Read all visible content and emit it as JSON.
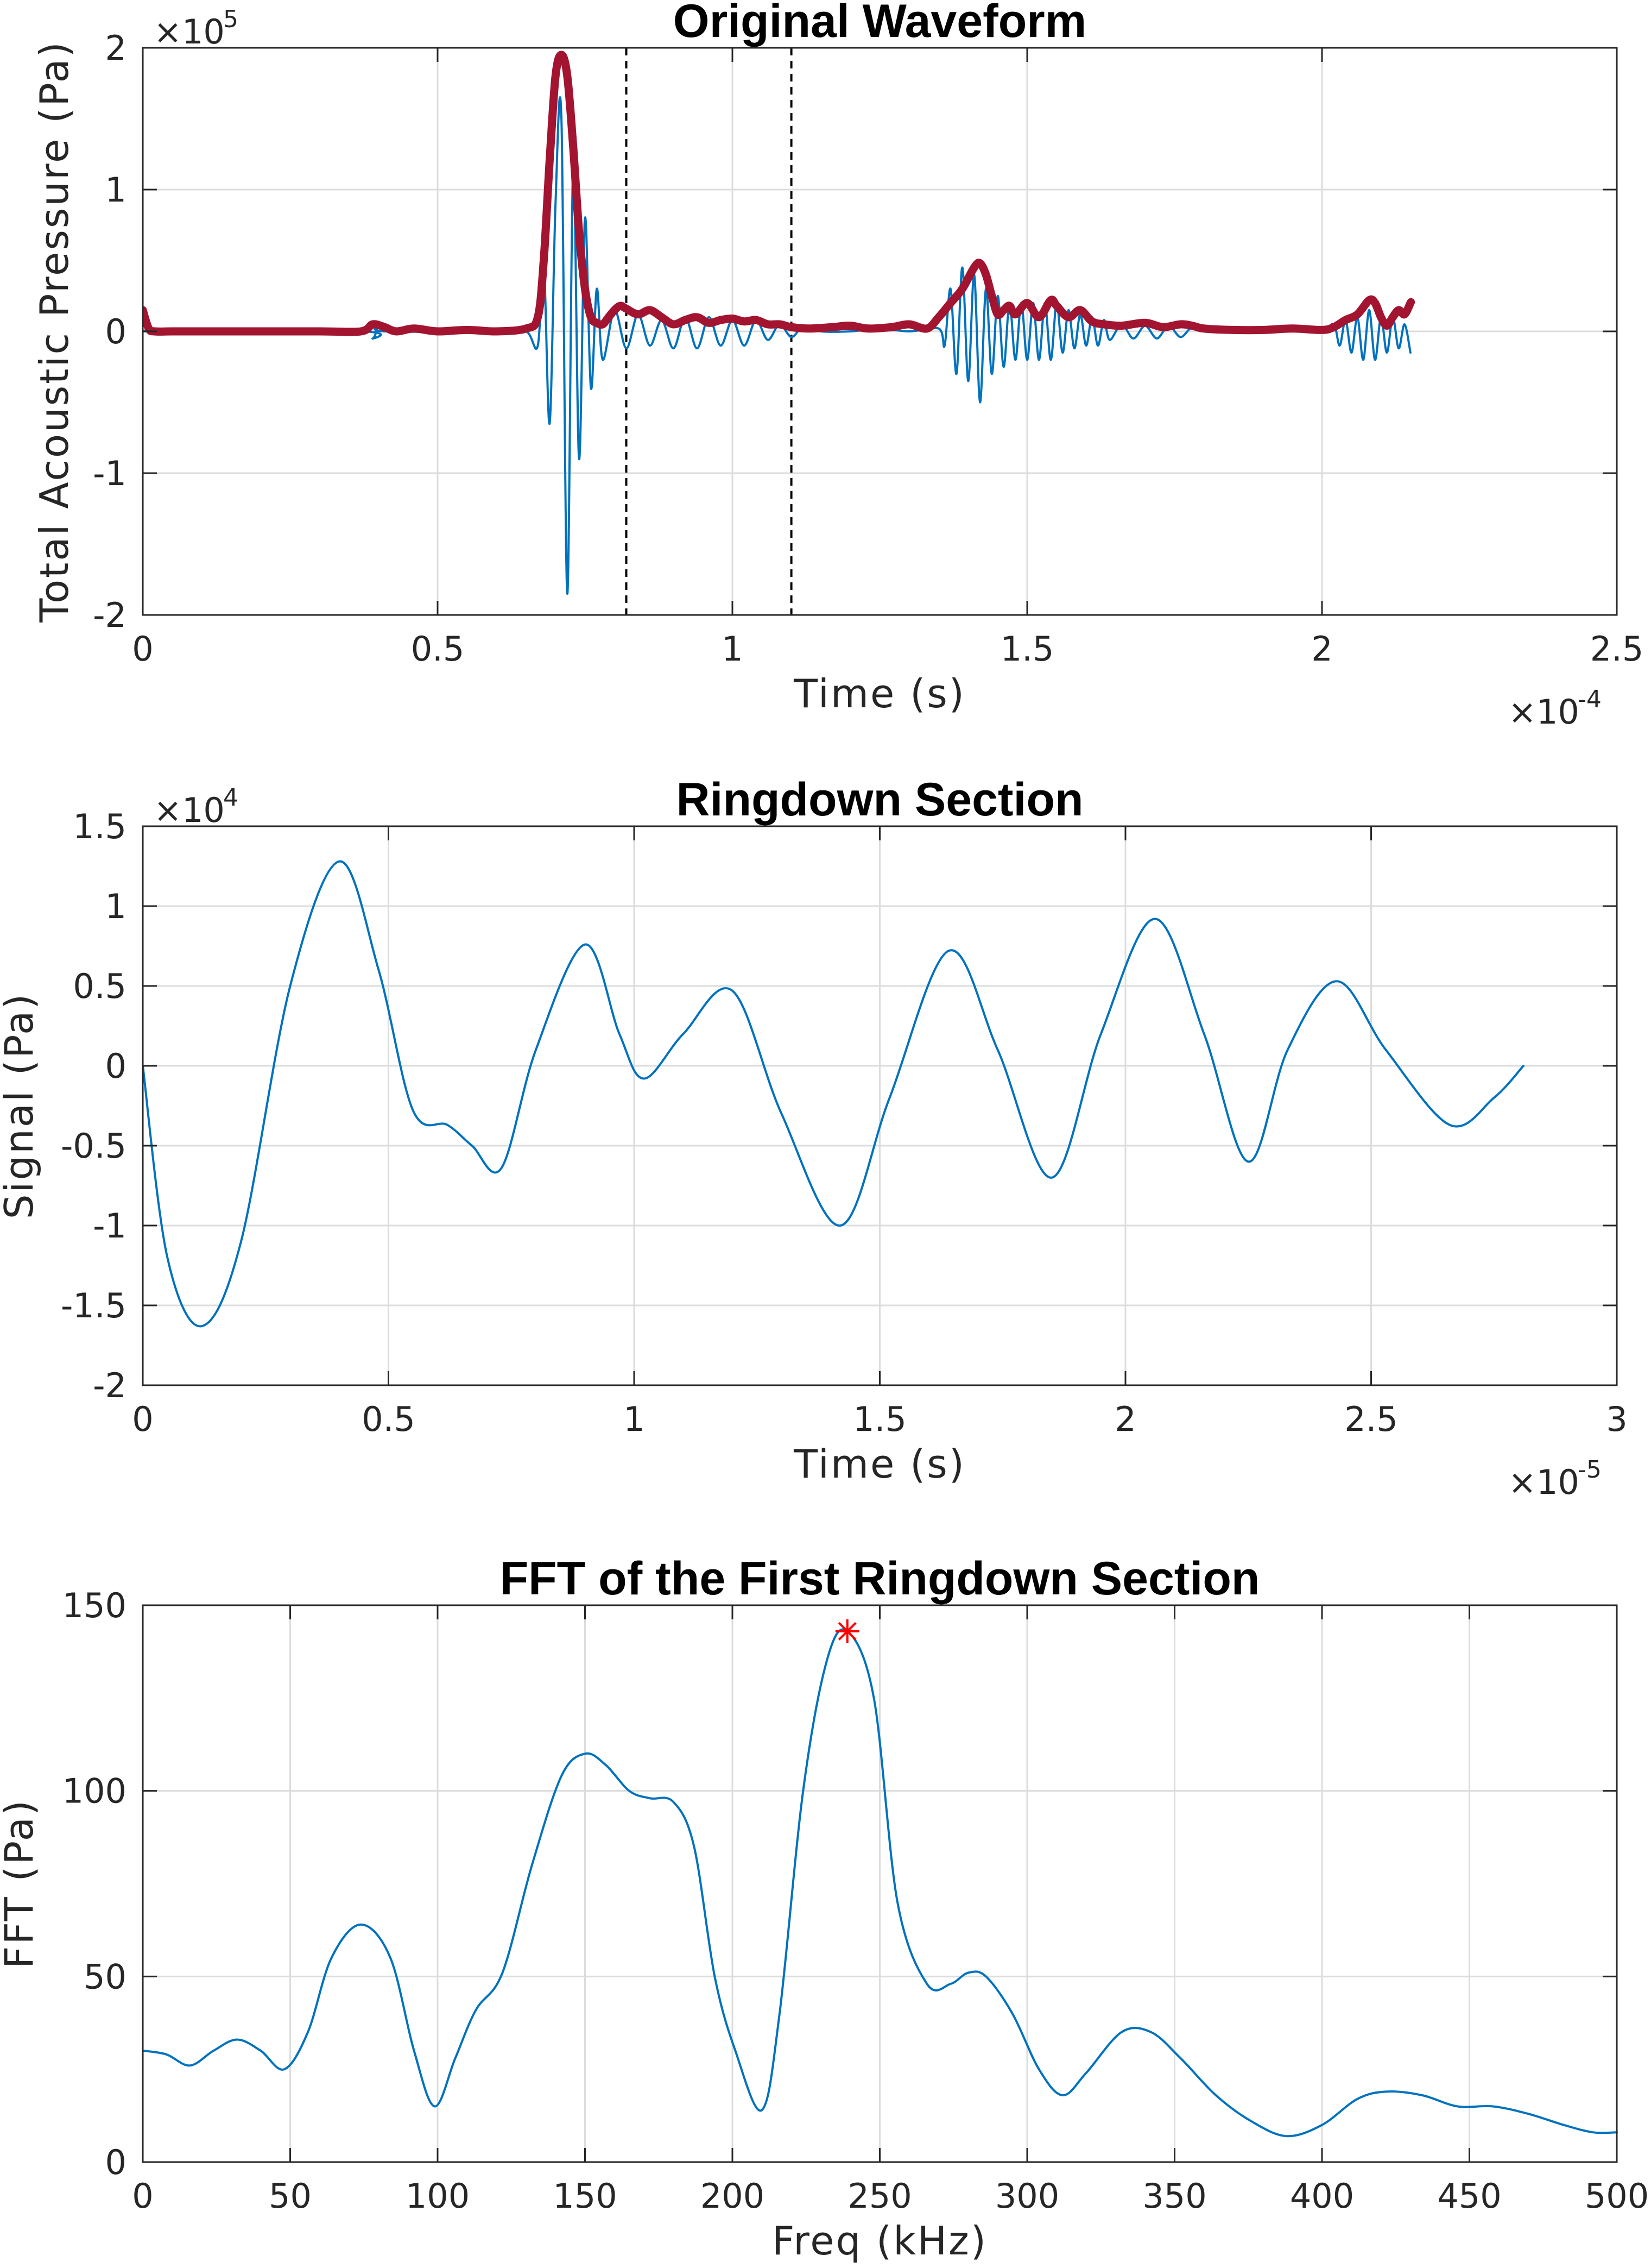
{
  "chart_data": [
    {
      "type": "line",
      "title": "Original Waveform",
      "xlabel": "Time (s)",
      "ylabel": "Total Acoustic Pressure (Pa)",
      "x_exponent": "-4",
      "y_exponent": "5",
      "xlim": [
        0,
        2.5
      ],
      "ylim": [
        -2,
        2
      ],
      "xticks": [
        0,
        0.5,
        1,
        1.5,
        2,
        2.5
      ],
      "xtick_labels": [
        "0",
        "0.5",
        "1",
        "1.5",
        "2",
        "2.5"
      ],
      "yticks": [
        -2,
        -1,
        0,
        1,
        2
      ],
      "ytick_labels": [
        "-2",
        "-1",
        "0",
        "1",
        "2"
      ],
      "grid": true,
      "vlines": [
        0.82,
        1.1
      ],
      "series": [
        {
          "role": "signal",
          "color": "#0072BD",
          "x": [
            0,
            0.37,
            0.39,
            0.4,
            0.41,
            0.6,
            0.65,
            0.67,
            0.68,
            0.69,
            0.7,
            0.71,
            0.72,
            0.73,
            0.74,
            0.75,
            0.76,
            0.77,
            0.78,
            0.8,
            0.82,
            0.84,
            0.86,
            0.88,
            0.9,
            0.92,
            0.94,
            0.96,
            0.98,
            1.0,
            1.02,
            1.04,
            1.06,
            1.08,
            1.1,
            1.12,
            1.15,
            1.2,
            1.25,
            1.3,
            1.35,
            1.36,
            1.37,
            1.38,
            1.39,
            1.4,
            1.41,
            1.42,
            1.43,
            1.44,
            1.45,
            1.46,
            1.47,
            1.48,
            1.49,
            1.5,
            1.51,
            1.52,
            1.53,
            1.54,
            1.55,
            1.56,
            1.57,
            1.58,
            1.59,
            1.6,
            1.61,
            1.62,
            1.63,
            1.64,
            1.66,
            1.68,
            1.7,
            1.72,
            1.74,
            1.76,
            1.78,
            1.8,
            1.85,
            1.9,
            1.95,
            2.0,
            2.02,
            2.03,
            2.04,
            2.05,
            2.06,
            2.07,
            2.08,
            2.09,
            2.1,
            2.11,
            2.12,
            2.13,
            2.14,
            2.15
          ],
          "y": [
            0,
            0,
            -0.05,
            0.04,
            0,
            0,
            0,
            -0.1,
            0.5,
            -0.65,
            0.9,
            1.5,
            -1.85,
            1.2,
            -0.9,
            0.8,
            -0.4,
            0.3,
            -0.2,
            0.15,
            -0.12,
            0.12,
            -0.1,
            0.08,
            -0.12,
            0.1,
            -0.12,
            0.1,
            -0.1,
            0.08,
            -0.1,
            0.08,
            -0.06,
            0.05,
            -0.04,
            0.03,
            0,
            0,
            0.02,
            0,
            0.02,
            -0.1,
            0.3,
            -0.3,
            0.45,
            -0.35,
            0.4,
            -0.5,
            0.3,
            -0.3,
            0.25,
            -0.25,
            0.2,
            -0.2,
            0.2,
            -0.2,
            0.2,
            -0.2,
            0.2,
            -0.2,
            0.2,
            -0.15,
            0.15,
            -0.12,
            0.12,
            -0.1,
            0.1,
            -0.1,
            0.08,
            -0.06,
            0.05,
            -0.05,
            0.04,
            -0.05,
            0.04,
            -0.04,
            0.03,
            0,
            0.02,
            0,
            0.02,
            0,
            0.05,
            -0.1,
            0.08,
            -0.15,
            0.1,
            -0.2,
            0.15,
            -0.2,
            0.1,
            -0.15,
            0.1,
            -0.12,
            0.05,
            -0.15
          ]
        },
        {
          "role": "envelope",
          "color": "#A2142F",
          "x": [
            0,
            0.01,
            0.02,
            0.05,
            0.1,
            0.2,
            0.3,
            0.37,
            0.39,
            0.41,
            0.43,
            0.46,
            0.5,
            0.55,
            0.6,
            0.65,
            0.67,
            0.68,
            0.69,
            0.7,
            0.71,
            0.72,
            0.73,
            0.74,
            0.75,
            0.76,
            0.77,
            0.78,
            0.79,
            0.8,
            0.81,
            0.82,
            0.84,
            0.86,
            0.88,
            0.9,
            0.92,
            0.94,
            0.96,
            0.98,
            1.0,
            1.02,
            1.04,
            1.06,
            1.08,
            1.1,
            1.13,
            1.17,
            1.2,
            1.23,
            1.27,
            1.3,
            1.33,
            1.35,
            1.37,
            1.39,
            1.41,
            1.42,
            1.43,
            1.44,
            1.45,
            1.46,
            1.47,
            1.48,
            1.5,
            1.52,
            1.54,
            1.55,
            1.57,
            1.59,
            1.61,
            1.63,
            1.66,
            1.7,
            1.73,
            1.76,
            1.78,
            1.8,
            1.85,
            1.9,
            1.95,
            2.0,
            2.02,
            2.04,
            2.06,
            2.08,
            2.09,
            2.1,
            2.11,
            2.12,
            2.13,
            2.14,
            2.15,
            2.15
          ],
          "y": [
            0.15,
            0.02,
            0,
            0,
            0,
            0,
            0,
            0,
            0.05,
            0.03,
            0,
            0.02,
            0,
            0.01,
            0,
            0.02,
            0.1,
            0.5,
            1.2,
            1.8,
            1.95,
            1.8,
            1.3,
            0.7,
            0.3,
            0.1,
            0.06,
            0.05,
            0.1,
            0.15,
            0.18,
            0.16,
            0.12,
            0.15,
            0.1,
            0.05,
            0.08,
            0.1,
            0.06,
            0.08,
            0.09,
            0.07,
            0.08,
            0.05,
            0.05,
            0.03,
            0.02,
            0.03,
            0.04,
            0.02,
            0.03,
            0.05,
            0.02,
            0.1,
            0.2,
            0.3,
            0.45,
            0.48,
            0.4,
            0.25,
            0.12,
            0.15,
            0.18,
            0.12,
            0.2,
            0.1,
            0.22,
            0.18,
            0.1,
            0.15,
            0.07,
            0.05,
            0.04,
            0.06,
            0.03,
            0.05,
            0.04,
            0.02,
            0.01,
            0.01,
            0.02,
            0.01,
            0.03,
            0.08,
            0.12,
            0.22,
            0.2,
            0.1,
            0.04,
            0.1,
            0.15,
            0.12,
            0.2,
            0.2
          ]
        }
      ]
    },
    {
      "type": "line",
      "title": "Ringdown Section",
      "xlabel": "Time (s)",
      "ylabel": "Signal (Pa)",
      "x_exponent": "-5",
      "y_exponent": "4",
      "xlim": [
        0,
        3
      ],
      "ylim": [
        -2,
        1.5
      ],
      "xticks": [
        0,
        0.5,
        1,
        1.5,
        2,
        2.5,
        3
      ],
      "xtick_labels": [
        "0",
        "0.5",
        "1",
        "1.5",
        "2",
        "2.5",
        "3"
      ],
      "yticks": [
        -2,
        -1.5,
        -1,
        -0.5,
        0,
        0.5,
        1,
        1.5
      ],
      "ytick_labels": [
        "-2",
        "-1.5",
        "-1",
        "-0.5",
        "0",
        "0.5",
        "1",
        "1.5"
      ],
      "grid": true,
      "series": [
        {
          "color": "#0072BD",
          "x": [
            0,
            0.05,
            0.12,
            0.2,
            0.3,
            0.4,
            0.48,
            0.55,
            0.62,
            0.67,
            0.73,
            0.8,
            0.9,
            0.97,
            1.02,
            1.1,
            1.2,
            1.3,
            1.42,
            1.52,
            1.64,
            1.74,
            1.85,
            1.95,
            2.06,
            2.16,
            2.25,
            2.33,
            2.43,
            2.53,
            2.66,
            2.75,
            2.81
          ],
          "y": [
            0,
            -1.2,
            -1.63,
            -1.1,
            0.5,
            1.28,
            0.6,
            -0.28,
            -0.37,
            -0.5,
            -0.64,
            0.1,
            0.76,
            0.2,
            -0.08,
            0.2,
            0.47,
            -0.3,
            -1.0,
            -0.2,
            0.72,
            0.1,
            -0.7,
            0.2,
            0.92,
            0.2,
            -0.6,
            0.1,
            0.53,
            0.1,
            -0.37,
            -0.2,
            0
          ]
        }
      ]
    },
    {
      "type": "line",
      "title": "FFT of the First Ringdown Section",
      "xlabel": "Freq (kHz)",
      "ylabel": "FFT (Pa)",
      "xlim": [
        0,
        500
      ],
      "ylim": [
        0,
        150
      ],
      "xticks": [
        0,
        50,
        100,
        150,
        200,
        250,
        300,
        350,
        400,
        450,
        500
      ],
      "xtick_labels": [
        "0",
        "50",
        "100",
        "150",
        "200",
        "250",
        "300",
        "350",
        "400",
        "450",
        "500"
      ],
      "yticks": [
        0,
        50,
        100,
        150
      ],
      "ytick_labels": [
        "0",
        "50",
        "100",
        "150"
      ],
      "grid": true,
      "series": [
        {
          "color": "#0072BD",
          "x": [
            0,
            8,
            16,
            24,
            32,
            40,
            48,
            56,
            64,
            74,
            84,
            92,
            99,
            106,
            113,
            122,
            132,
            142,
            150,
            157,
            165,
            172,
            180,
            187,
            194,
            201,
            210,
            216,
            224,
            232,
            239,
            248,
            256,
            266,
            274,
            280,
            286,
            295,
            304,
            312,
            320,
            332,
            342,
            352,
            364,
            376,
            388,
            400,
            412,
            422,
            434,
            446,
            458,
            470,
            482,
            492,
            500
          ],
          "y": [
            30,
            29,
            26,
            30,
            33,
            30,
            25,
            35,
            55,
            64,
            55,
            30,
            15,
            28,
            41,
            51,
            80,
            104,
            110,
            107,
            100,
            98,
            97,
            85,
            50,
            30,
            14,
            40,
            100,
            135,
            143,
            125,
            70,
            48,
            48,
            51,
            50,
            40,
            25,
            18,
            24,
            35,
            35,
            28,
            18,
            11,
            7,
            10,
            17,
            19,
            18,
            15,
            15,
            13,
            10,
            8,
            8
          ]
        }
      ],
      "marker": {
        "x": 239,
        "y": 143,
        "color": "#FF0000",
        "symbol": "asterisk"
      }
    }
  ]
}
